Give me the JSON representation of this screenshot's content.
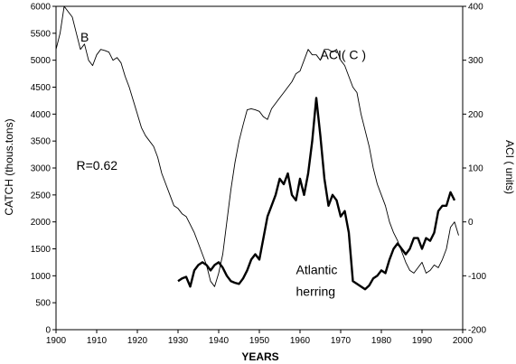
{
  "chart_data": {
    "type": "line",
    "title": "",
    "xlabel": "YEARS",
    "ylabel_left": "CATCH (thous.tons)",
    "ylabel_right": "ACI ( units)",
    "xlim": [
      1900,
      2000
    ],
    "ylim_left": [
      0,
      6000
    ],
    "ylim_right": [
      -200,
      400
    ],
    "x_ticks": [
      1900,
      1910,
      1920,
      1930,
      1940,
      1950,
      1960,
      1970,
      1980,
      1990,
      2000
    ],
    "y_left_ticks": [
      0,
      500,
      1000,
      1500,
      2000,
      2500,
      3000,
      3500,
      4000,
      4500,
      5000,
      5500,
      6000
    ],
    "y_right_ticks": [
      -200,
      -100,
      0,
      100,
      200,
      300,
      400
    ],
    "grid": false,
    "legend": "none",
    "annotations": [
      {
        "text": "B",
        "x": 1906,
        "y": 5350
      },
      {
        "text": "ACI( C )",
        "x": 1965,
        "y": 5020
      },
      {
        "text": "R=0.62",
        "x": 1905,
        "y": 2970
      },
      {
        "text": "Atlantic",
        "x": 1959,
        "y": 1030
      },
      {
        "text": "herring",
        "x": 1959,
        "y": 630
      }
    ],
    "series": [
      {
        "name": "ACI( C )",
        "axis": "right",
        "style": "thin",
        "x": [
          1900,
          1901,
          1902,
          1903,
          1904,
          1905,
          1906,
          1907,
          1908,
          1909,
          1910,
          1911,
          1912,
          1913,
          1914,
          1915,
          1916,
          1917,
          1918,
          1919,
          1920,
          1921,
          1922,
          1923,
          1924,
          1925,
          1926,
          1927,
          1928,
          1929,
          1930,
          1931,
          1932,
          1933,
          1934,
          1935,
          1936,
          1937,
          1938,
          1939,
          1940,
          1941,
          1942,
          1943,
          1944,
          1945,
          1946,
          1947,
          1948,
          1949,
          1950,
          1951,
          1952,
          1953,
          1954,
          1955,
          1956,
          1957,
          1958,
          1959,
          1960,
          1961,
          1962,
          1963,
          1964,
          1965,
          1966,
          1967,
          1968,
          1969,
          1970,
          1971,
          1972,
          1973,
          1974,
          1975,
          1976,
          1977,
          1978,
          1979,
          1980,
          1981,
          1982,
          1983,
          1984,
          1985,
          1986,
          1987,
          1988,
          1989,
          1990,
          1991,
          1992,
          1993,
          1994,
          1995,
          1996,
          1997,
          1998,
          1999
        ],
        "values": [
          320,
          350,
          400,
          390,
          380,
          350,
          320,
          330,
          300,
          290,
          310,
          320,
          318,
          315,
          300,
          305,
          295,
          270,
          250,
          225,
          200,
          175,
          160,
          150,
          140,
          120,
          90,
          70,
          50,
          30,
          25,
          15,
          10,
          -5,
          -20,
          -40,
          -60,
          -80,
          -110,
          -120,
          -95,
          -60,
          0,
          60,
          110,
          150,
          180,
          208,
          210,
          208,
          205,
          195,
          190,
          210,
          220,
          230,
          240,
          250,
          260,
          275,
          280,
          300,
          320,
          310,
          310,
          300,
          320,
          320,
          315,
          320,
          300,
          290,
          270,
          250,
          240,
          200,
          170,
          140,
          100,
          70,
          50,
          30,
          0,
          -20,
          -35,
          -55,
          -75,
          -90,
          -95,
          -85,
          -75,
          -95,
          -90,
          -80,
          -85,
          -70,
          -50,
          -10,
          0,
          -25
        ]
      },
      {
        "name": "Atlantic herring",
        "axis": "left",
        "style": "thick",
        "x": [
          1930,
          1931,
          1932,
          1933,
          1934,
          1935,
          1936,
          1937,
          1938,
          1939,
          1940,
          1941,
          1942,
          1943,
          1944,
          1945,
          1946,
          1947,
          1948,
          1949,
          1950,
          1951,
          1952,
          1953,
          1954,
          1955,
          1956,
          1957,
          1958,
          1959,
          1960,
          1961,
          1962,
          1963,
          1964,
          1965,
          1966,
          1967,
          1968,
          1969,
          1970,
          1971,
          1972,
          1973,
          1974,
          1975,
          1976,
          1977,
          1978,
          1979,
          1980,
          1981,
          1982,
          1983,
          1984,
          1985,
          1986,
          1987,
          1988,
          1989,
          1990,
          1991,
          1992,
          1993,
          1994,
          1995,
          1996,
          1997,
          1998
        ],
        "values": [
          900,
          950,
          980,
          800,
          1100,
          1200,
          1250,
          1200,
          1100,
          1200,
          1250,
          1150,
          1000,
          900,
          870,
          850,
          950,
          1100,
          1300,
          1400,
          1300,
          1700,
          2100,
          2300,
          2500,
          2800,
          2700,
          2900,
          2500,
          2400,
          2800,
          2500,
          2900,
          3500,
          4300,
          3600,
          2800,
          2300,
          2500,
          2400,
          2100,
          2200,
          1800,
          900,
          850,
          800,
          750,
          820,
          950,
          1000,
          1100,
          1050,
          1300,
          1500,
          1600,
          1500,
          1400,
          1500,
          1700,
          1700,
          1500,
          1700,
          1650,
          1800,
          2200,
          2300,
          2300,
          2550,
          2400
        ]
      }
    ]
  }
}
